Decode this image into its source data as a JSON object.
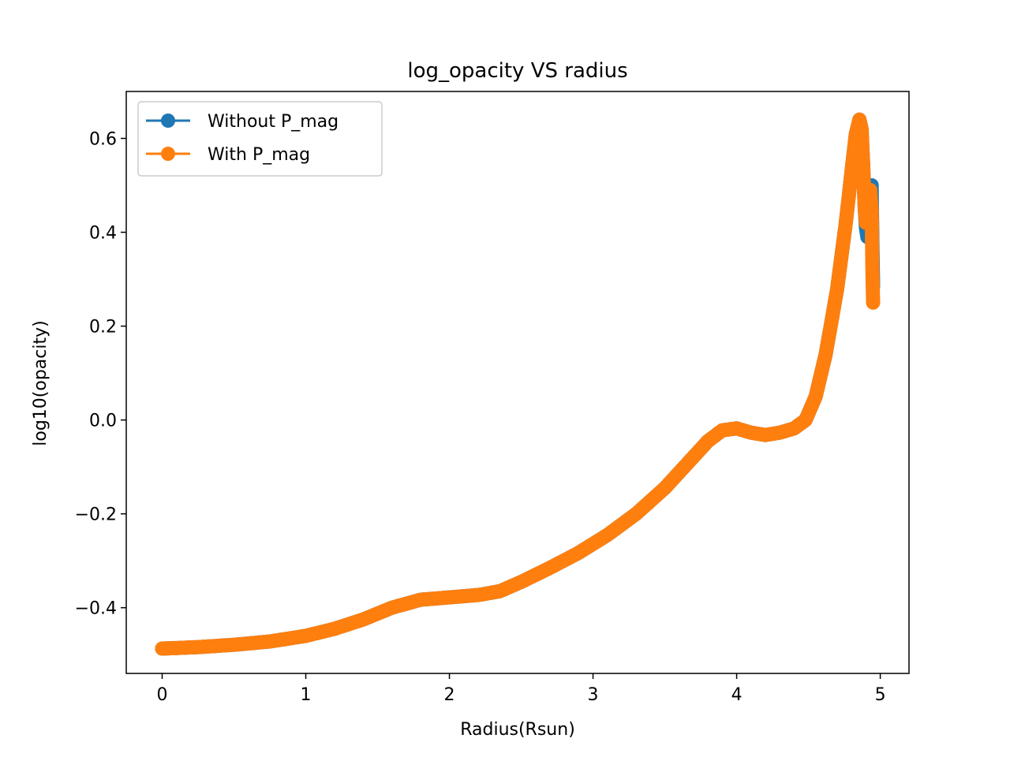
{
  "chart_data": {
    "type": "line",
    "title": "log_opacity VS radius",
    "xlabel": "Radius(Rsun)",
    "ylabel": "log10(opacity)",
    "xlim": [
      -0.25,
      5.2
    ],
    "ylim": [
      -0.54,
      0.7
    ],
    "xticks": [
      0,
      1,
      2,
      3,
      4,
      5
    ],
    "xtick_labels": [
      "0",
      "1",
      "2",
      "3",
      "4",
      "5"
    ],
    "yticks": [
      -0.4,
      -0.2,
      0.0,
      0.2,
      0.4,
      0.6
    ],
    "ytick_labels": [
      "−0.4",
      "−0.2",
      "0.0",
      "0.2",
      "0.4",
      "0.6"
    ],
    "grid": false,
    "legend": {
      "position": "top-left"
    },
    "series": [
      {
        "name": "Without P_mag",
        "color": "#1f77b4",
        "x": [
          0.0,
          0.1,
          0.25,
          0.5,
          0.75,
          1.0,
          1.2,
          1.4,
          1.6,
          1.8,
          2.0,
          2.2,
          2.35,
          2.5,
          2.7,
          2.9,
          3.1,
          3.3,
          3.5,
          3.65,
          3.8,
          3.9,
          4.0,
          4.1,
          4.2,
          4.3,
          4.4,
          4.48,
          4.55,
          4.62,
          4.7,
          4.76,
          4.8,
          4.83,
          4.855,
          4.87,
          4.88,
          4.89,
          4.9,
          4.91,
          4.92,
          4.93,
          4.94,
          4.945,
          4.95
        ],
        "y": [
          -0.487,
          -0.486,
          -0.484,
          -0.479,
          -0.472,
          -0.46,
          -0.445,
          -0.425,
          -0.4,
          -0.383,
          -0.378,
          -0.373,
          -0.365,
          -0.345,
          -0.315,
          -0.283,
          -0.245,
          -0.2,
          -0.145,
          -0.095,
          -0.045,
          -0.022,
          -0.018,
          -0.027,
          -0.032,
          -0.027,
          -0.018,
          0.0,
          0.05,
          0.14,
          0.28,
          0.42,
          0.53,
          0.61,
          0.64,
          0.62,
          0.55,
          0.46,
          0.41,
          0.39,
          0.4,
          0.45,
          0.5,
          0.38,
          0.285
        ]
      },
      {
        "name": "With P_mag",
        "color": "#ff7f0e",
        "x": [
          0.0,
          0.1,
          0.25,
          0.5,
          0.75,
          1.0,
          1.2,
          1.4,
          1.6,
          1.8,
          2.0,
          2.2,
          2.35,
          2.5,
          2.7,
          2.9,
          3.1,
          3.3,
          3.5,
          3.65,
          3.8,
          3.9,
          4.0,
          4.1,
          4.2,
          4.3,
          4.4,
          4.48,
          4.55,
          4.62,
          4.7,
          4.76,
          4.8,
          4.83,
          4.855,
          4.87,
          4.88,
          4.89,
          4.9,
          4.91,
          4.92,
          4.93,
          4.94,
          4.945,
          4.95
        ],
        "y": [
          -0.487,
          -0.486,
          -0.484,
          -0.479,
          -0.472,
          -0.46,
          -0.445,
          -0.425,
          -0.4,
          -0.383,
          -0.378,
          -0.373,
          -0.365,
          -0.345,
          -0.315,
          -0.283,
          -0.245,
          -0.2,
          -0.145,
          -0.095,
          -0.045,
          -0.022,
          -0.018,
          -0.027,
          -0.032,
          -0.027,
          -0.018,
          0.0,
          0.05,
          0.14,
          0.28,
          0.42,
          0.53,
          0.61,
          0.64,
          0.62,
          0.55,
          0.46,
          0.42,
          0.44,
          0.48,
          0.49,
          0.45,
          0.32,
          0.25
        ]
      }
    ]
  }
}
